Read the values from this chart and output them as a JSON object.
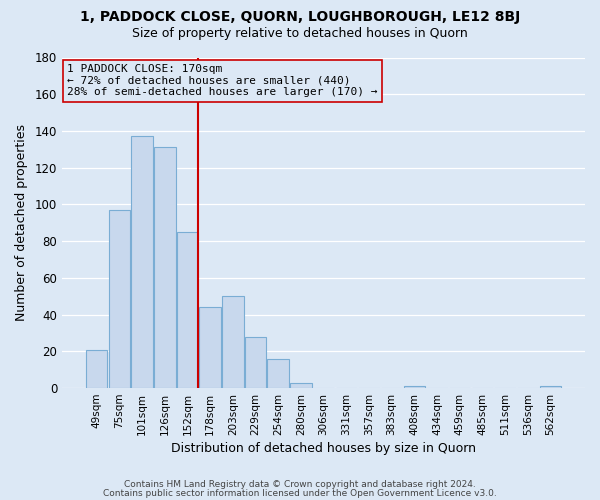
{
  "title": "1, PADDOCK CLOSE, QUORN, LOUGHBOROUGH, LE12 8BJ",
  "subtitle": "Size of property relative to detached houses in Quorn",
  "xlabel": "Distribution of detached houses by size in Quorn",
  "ylabel": "Number of detached properties",
  "bar_color": "#c8d8ed",
  "bar_edge_color": "#7aadd4",
  "grid_color": "#dce8f5",
  "bg_color": "#dce8f5",
  "categories": [
    "49sqm",
    "75sqm",
    "101sqm",
    "126sqm",
    "152sqm",
    "178sqm",
    "203sqm",
    "229sqm",
    "254sqm",
    "280sqm",
    "306sqm",
    "331sqm",
    "357sqm",
    "383sqm",
    "408sqm",
    "434sqm",
    "459sqm",
    "485sqm",
    "511sqm",
    "536sqm",
    "562sqm"
  ],
  "values": [
    21,
    97,
    137,
    131,
    85,
    44,
    50,
    28,
    16,
    3,
    0,
    0,
    0,
    0,
    1,
    0,
    0,
    0,
    0,
    0,
    1
  ],
  "ylim": [
    0,
    180
  ],
  "yticks": [
    0,
    20,
    40,
    60,
    80,
    100,
    120,
    140,
    160,
    180
  ],
  "vline_color": "#cc0000",
  "annotation_title": "1 PADDOCK CLOSE: 170sqm",
  "annotation_line1": "← 72% of detached houses are smaller (440)",
  "annotation_line2": "28% of semi-detached houses are larger (170) →",
  "footer1": "Contains HM Land Registry data © Crown copyright and database right 2024.",
  "footer2": "Contains public sector information licensed under the Open Government Licence v3.0."
}
